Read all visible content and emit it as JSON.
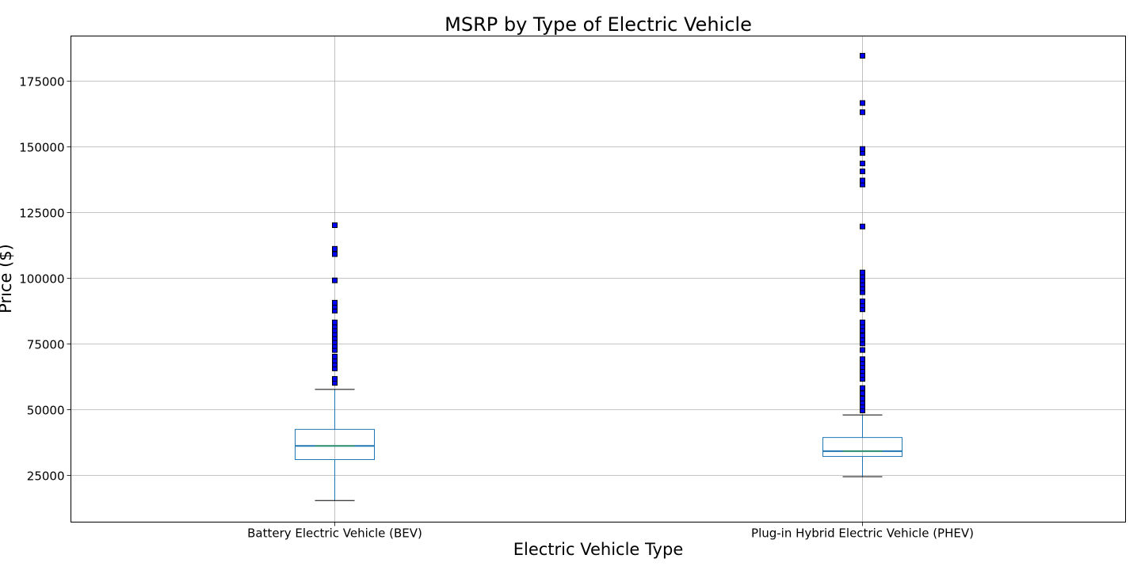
{
  "chart_data": {
    "type": "box",
    "title": "MSRP by Type of Electric Vehicle",
    "xlabel": "Electric Vehicle Type",
    "ylabel": "Price ($)",
    "ylim": [
      7000,
      192000
    ],
    "yticks": [
      25000,
      50000,
      75000,
      100000,
      125000,
      150000,
      175000
    ],
    "grid": true,
    "categories": [
      "Battery Electric Vehicle (BEV)",
      "Plug-in Hybrid Electric Vehicle (PHEV)"
    ],
    "boxes": [
      {
        "category": "Battery Electric Vehicle (BEV)",
        "whisker_low": 15200,
        "q1": 30800,
        "median": 36000,
        "q3": 42300,
        "whisker_high": 57500,
        "outliers": [
          60000,
          61500,
          65500,
          67000,
          68500,
          70000,
          72500,
          74000,
          75500,
          77000,
          78500,
          80000,
          81500,
          83000,
          87500,
          89000,
          90500,
          99000,
          109000,
          111000,
          120000
        ]
      },
      {
        "category": "Plug-in Hybrid Electric Vehicle (PHEV)",
        "whisker_low": 24300,
        "q1": 32000,
        "median": 34000,
        "q3": 39200,
        "whisker_high": 47800,
        "outliers": [
          49500,
          51000,
          52500,
          54000,
          56000,
          58000,
          61500,
          63000,
          64500,
          66000,
          67500,
          69000,
          72500,
          75000,
          76500,
          78000,
          80000,
          81500,
          83000,
          88000,
          89500,
          91000,
          94500,
          96000,
          97500,
          99000,
          100500,
          102000,
          119500,
          135500,
          137000,
          140500,
          143500,
          147500,
          149000,
          163000,
          166500,
          184500
        ]
      }
    ],
    "colors": {
      "box": "#1f77b4",
      "median": "#2ca02c",
      "whisker": "#1f77b4",
      "cap": "#000000",
      "outlier_fill": "#0000ff",
      "outlier_edge": "#000000",
      "grid": "#b0b0b0"
    }
  }
}
